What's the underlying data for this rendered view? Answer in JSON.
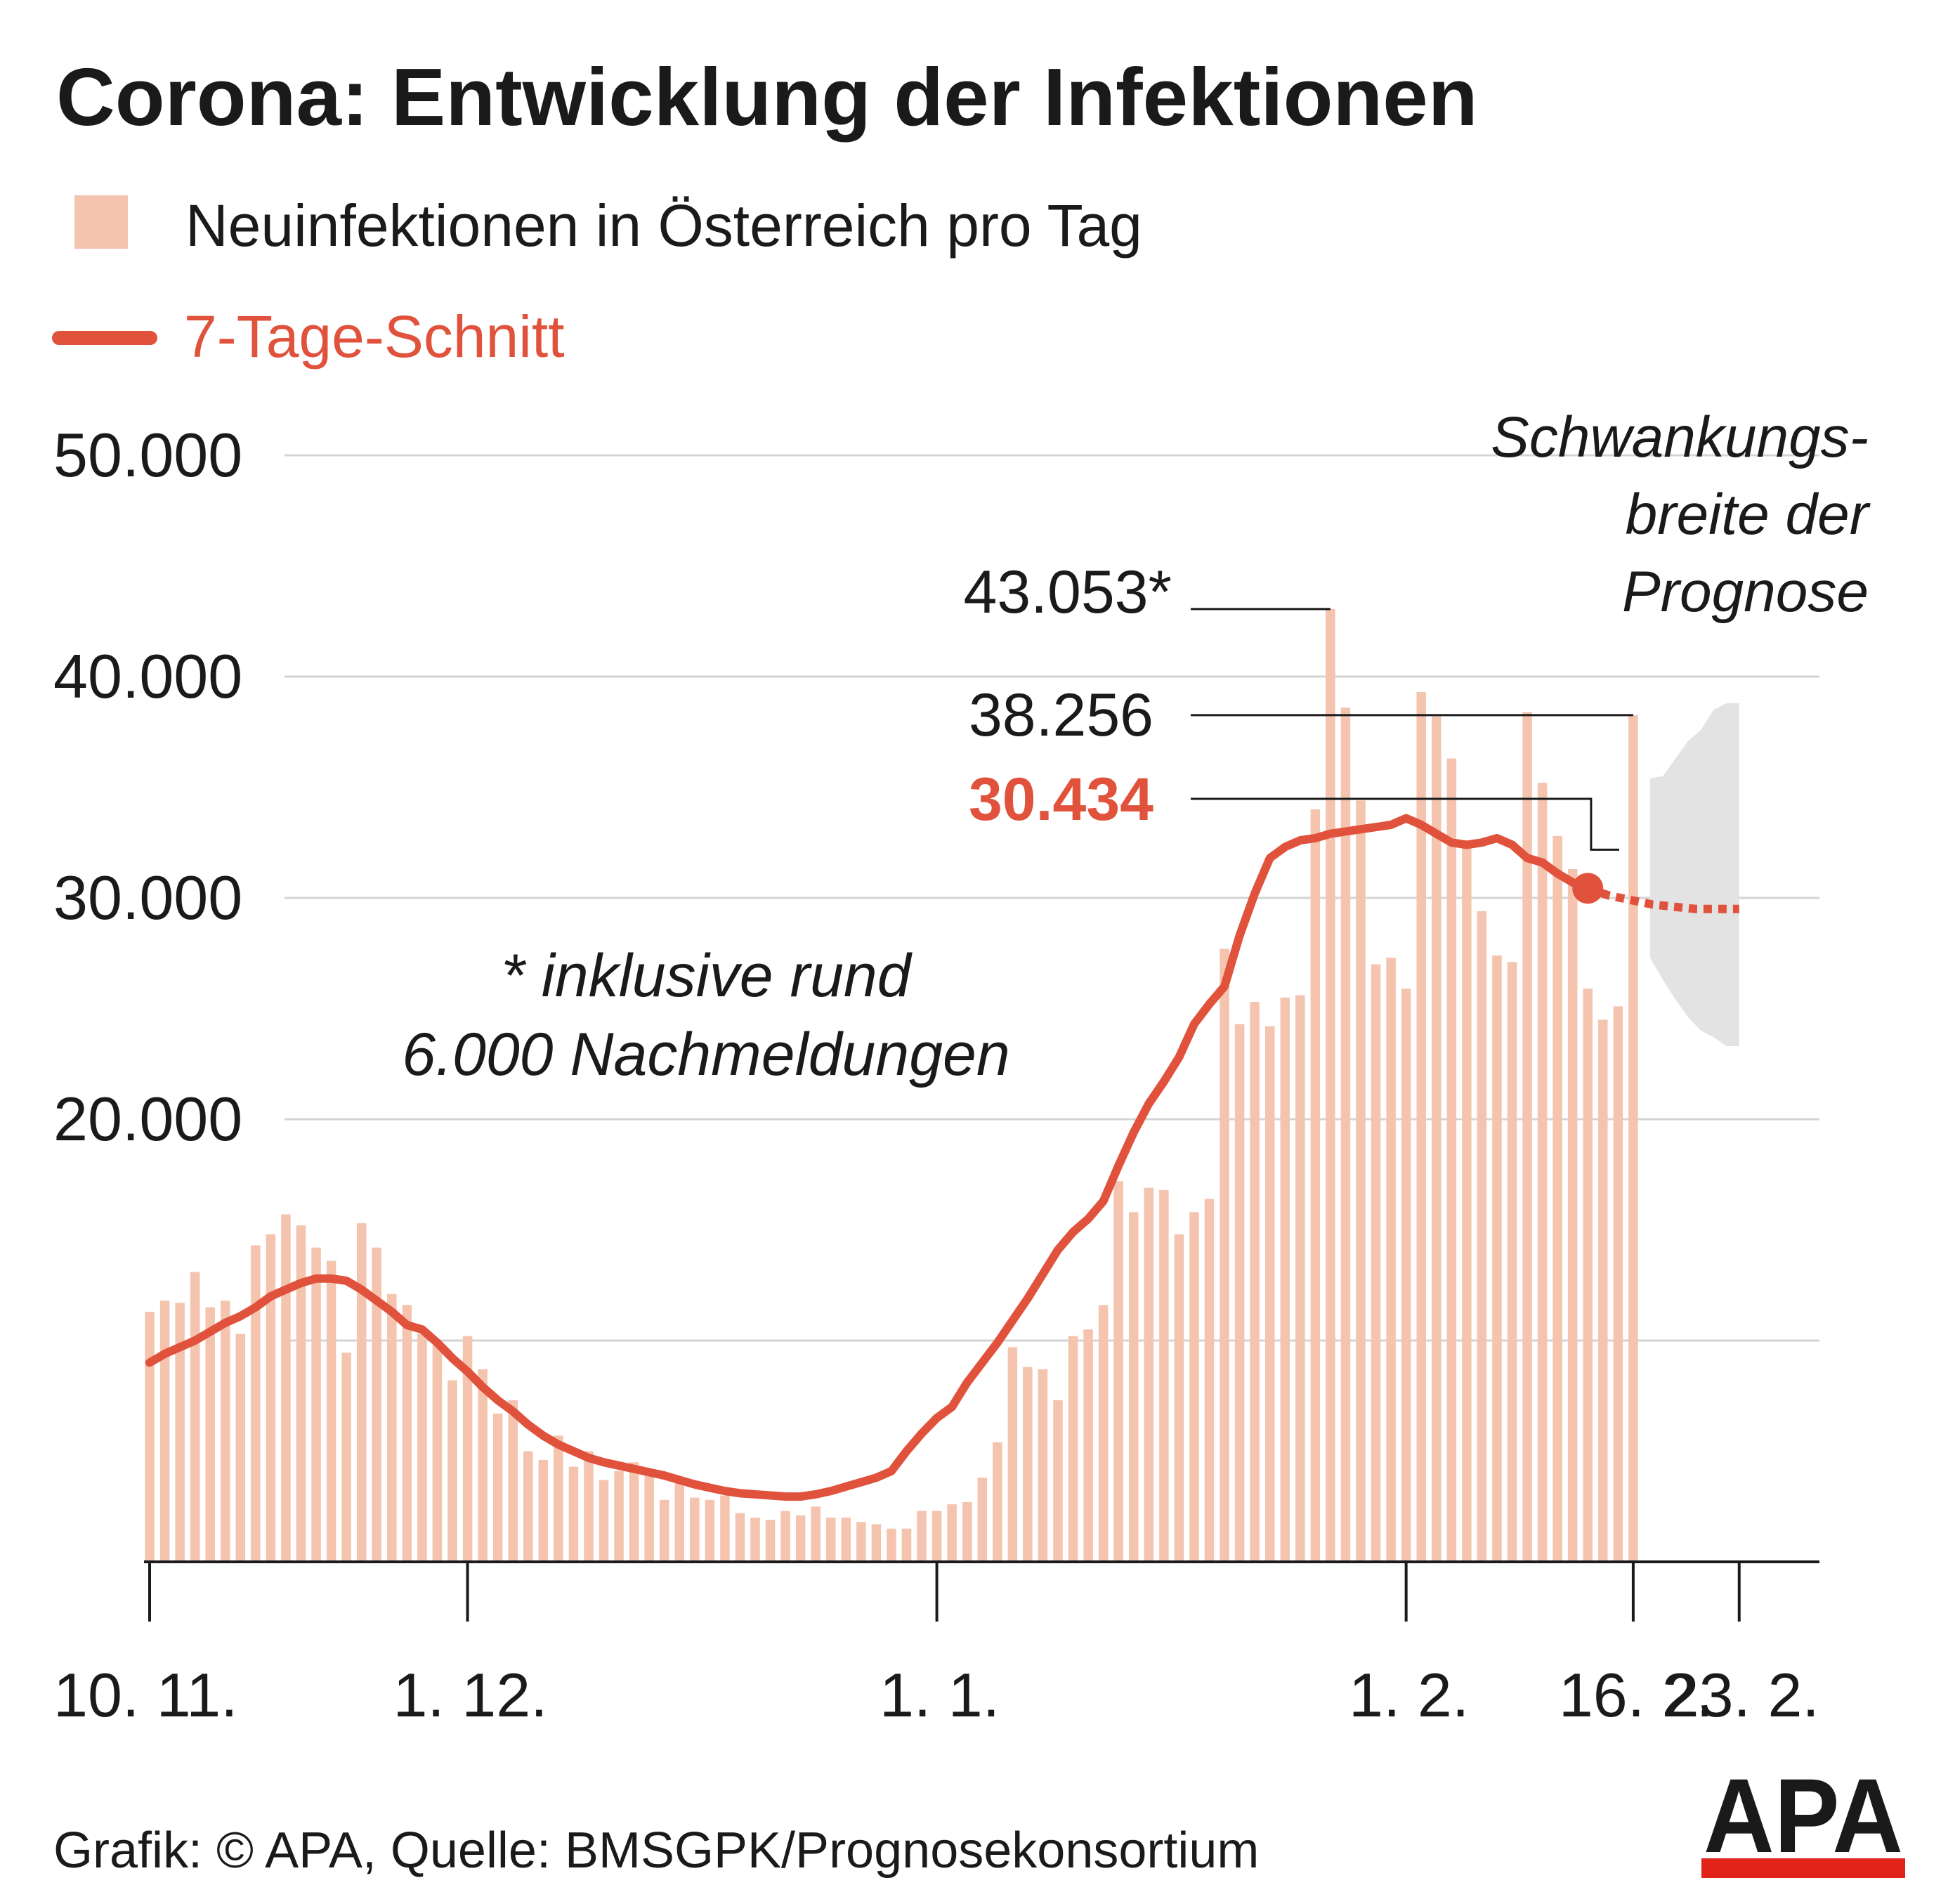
{
  "title": "Corona: Entwicklung der Infektionen",
  "footer": {
    "source": "Grafik: © APA, Quelle: BMSGPK/Prognosekonsortium",
    "logo_text": "APA"
  },
  "chart_data": {
    "type": "bar",
    "legend": [
      {
        "label": "Neuinfektionen in Österreich pro Tag",
        "kind": "bar",
        "color": "#f4c4ae"
      },
      {
        "label": "7-Tage-Schnitt",
        "kind": "line",
        "color": "#e0523c"
      }
    ],
    "yticks": [
      "50.000",
      "40.000",
      "30.000",
      "20.000",
      "",
      ""
    ],
    "ylim": [
      0,
      50000
    ],
    "xticks": [
      "10. 11.",
      "1. 12.",
      "1. 1.",
      "1. 2.",
      "16. 2.",
      "23. 2."
    ],
    "xtick_days": [
      0,
      21,
      52,
      83,
      98,
      105
    ],
    "grid": true,
    "annotations": {
      "peak": "43.053*",
      "last_value": "38.256",
      "last_average": "30.434",
      "footnote_line1": "* inklusive rund",
      "footnote_line2": "6.000 Nachmeldungen",
      "forecast_label": [
        "Schwankungs-",
        "breite der",
        "Prognose"
      ]
    },
    "series": [
      {
        "name": "Neuinfektionen in Österreich pro Tag",
        "start_date": "2021-11-10",
        "values": [
          11300,
          11800,
          11700,
          13100,
          11500,
          11800,
          10300,
          14300,
          14800,
          15700,
          15200,
          14200,
          13600,
          9450,
          15300,
          14200,
          12100,
          11600,
          10300,
          10000,
          8200,
          10200,
          8700,
          6700,
          7300,
          5000,
          4600,
          5700,
          4300,
          5000,
          3700,
          4100,
          4500,
          3900,
          2800,
          3700,
          2900,
          2800,
          3000,
          2200,
          2000,
          1900,
          2300,
          2100,
          2500,
          2000,
          2000,
          1800,
          1700,
          1500,
          1500,
          2300,
          2300,
          2600,
          2700,
          3800,
          5400,
          9700,
          8800,
          8700,
          7300,
          10200,
          10500,
          11600,
          17200,
          15800,
          16900,
          16800,
          14800,
          15800,
          16400,
          27700,
          24300,
          25300,
          24200,
          25500,
          25600,
          34000,
          43053,
          38600,
          34400,
          27000,
          27300,
          25900,
          39300,
          38200,
          36300,
          32400,
          29400,
          27400,
          27100,
          38400,
          35200,
          32800,
          31300,
          25900,
          24500,
          25100,
          38256
        ]
      },
      {
        "name": "7-Tage-Schnitt",
        "start_date": "2021-11-10",
        "values": [
          9000,
          9400,
          9700,
          10000,
          10400,
          10800,
          11100,
          11500,
          12000,
          12300,
          12600,
          12800,
          12800,
          12700,
          12300,
          11800,
          11300,
          10700,
          10500,
          9900,
          9200,
          8600,
          7900,
          7300,
          6800,
          6200,
          5700,
          5300,
          5000,
          4700,
          4500,
          4350,
          4200,
          4050,
          3900,
          3700,
          3500,
          3350,
          3200,
          3100,
          3050,
          3000,
          2950,
          2950,
          3050,
          3200,
          3400,
          3600,
          3800,
          4100,
          5000,
          5800,
          6500,
          7000,
          8100,
          9000,
          9900,
          10900,
          11900,
          13000,
          14100,
          14900,
          15500,
          16300,
          17900,
          19400,
          20700,
          21700,
          22800,
          24300,
          25200,
          26000,
          28300,
          30200,
          31800,
          32300,
          32600,
          32700,
          32900,
          33000,
          33100,
          33200,
          33300,
          33600,
          33300,
          32900,
          32500,
          32400,
          32500,
          32700,
          32400,
          31800,
          31600,
          31100,
          30700,
          30434
        ]
      },
      {
        "name": "Prognose",
        "start_date": "2021-02-16",
        "values": [
          30434,
          30100,
          29900,
          29700,
          29600,
          29500,
          29500,
          29500
        ],
        "band_upper": [
          35400,
          35500,
          36300,
          37100,
          37600,
          38500,
          38800,
          38800
        ],
        "band_lower": [
          27300,
          26300,
          25400,
          24600,
          24000,
          23700,
          23300,
          23300
        ]
      }
    ]
  }
}
